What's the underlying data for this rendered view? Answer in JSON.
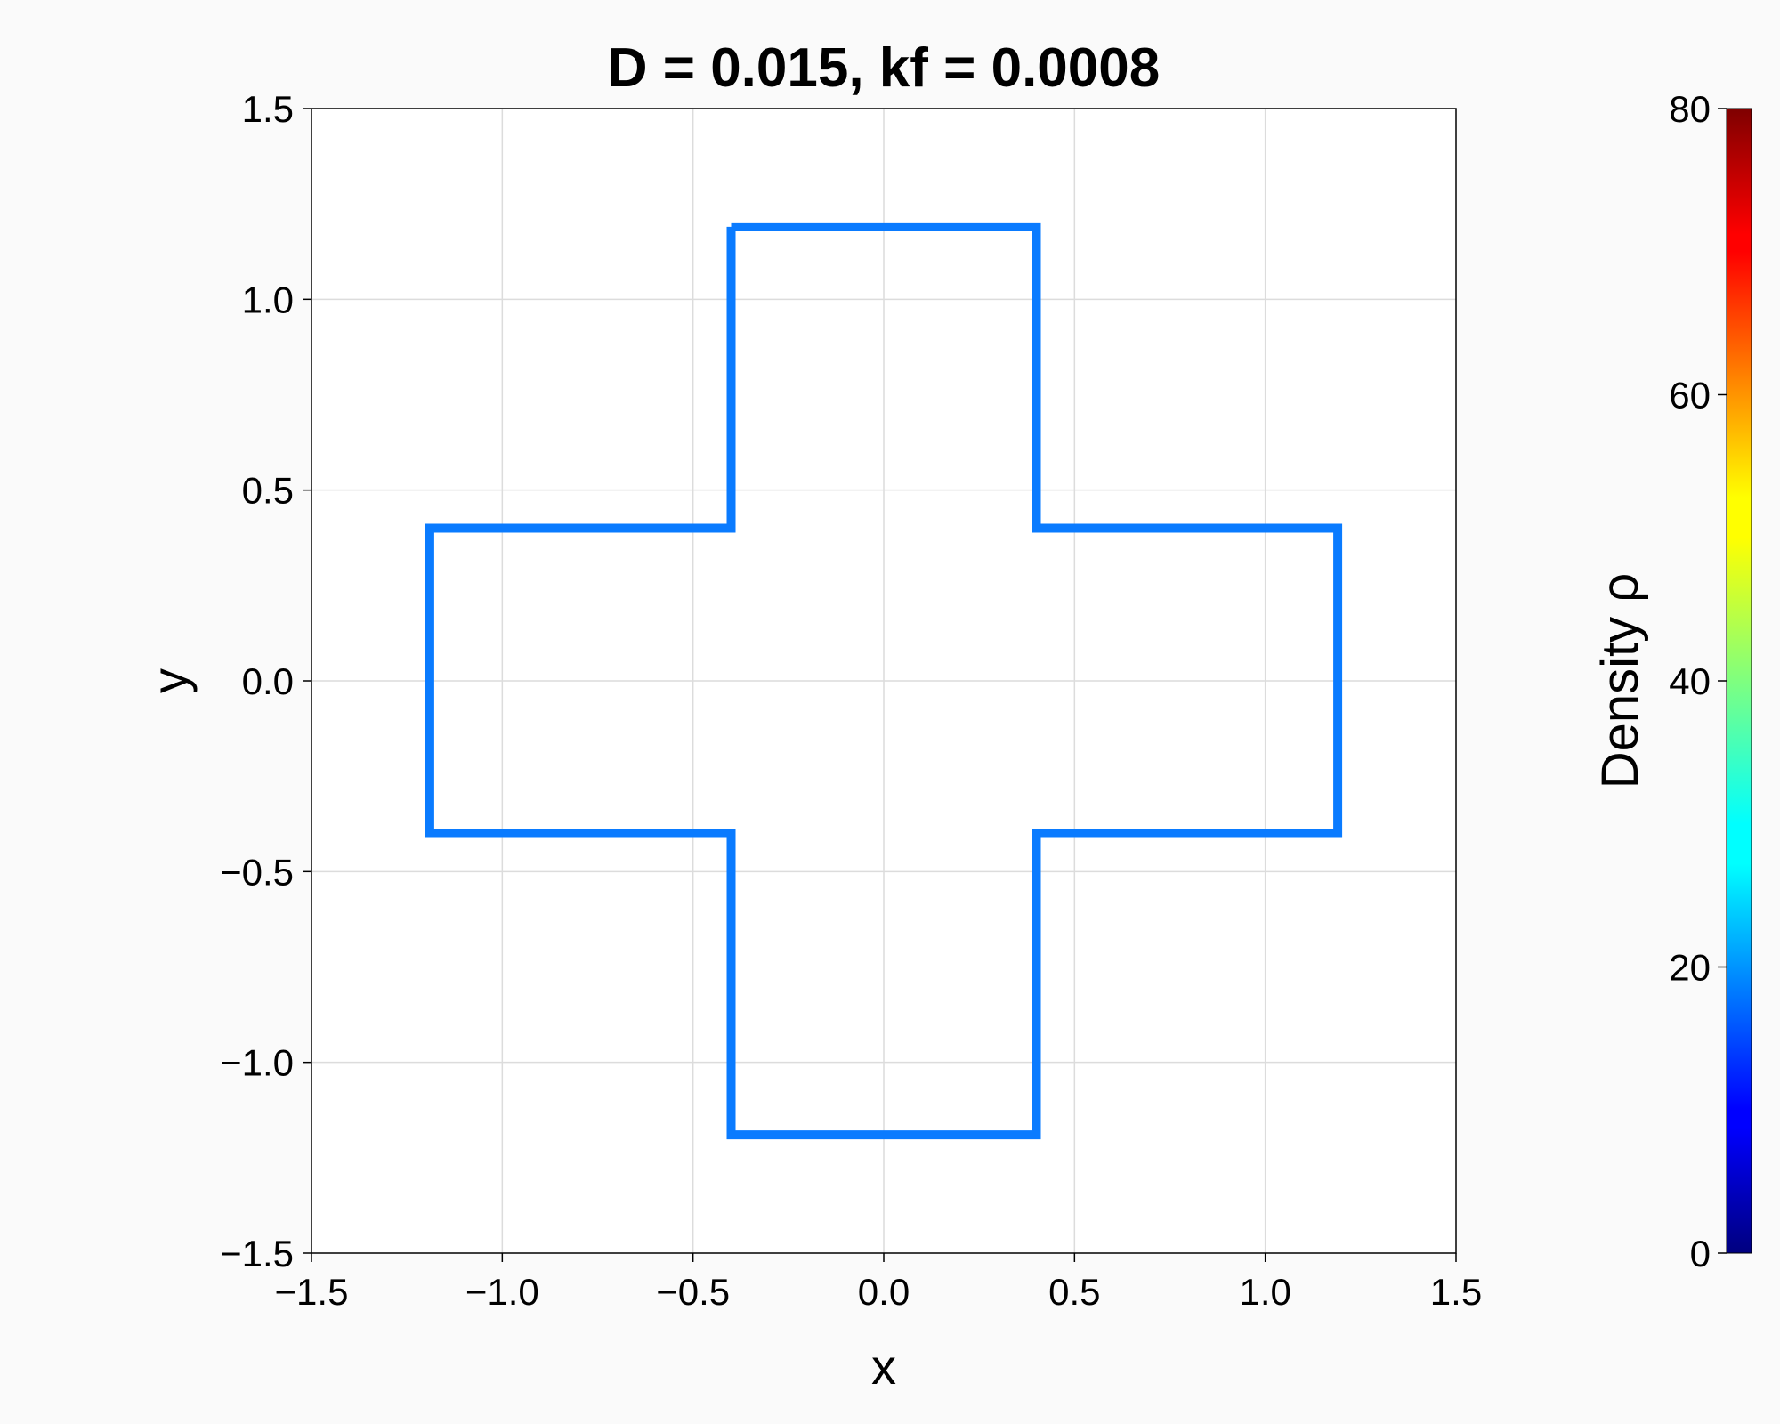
{
  "chart_data": {
    "type": "line",
    "title": "D = 0.015, kf = 0.0008",
    "xlabel": "x",
    "ylabel": "y",
    "xlim": [
      -1.5,
      1.5
    ],
    "ylim": [
      -1.5,
      1.5
    ],
    "xticks": [
      -1.5,
      -1.0,
      -0.5,
      0.0,
      0.5,
      1.0,
      1.5
    ],
    "yticks": [
      -1.5,
      -1.0,
      -0.5,
      0.0,
      0.5,
      1.0,
      1.5
    ],
    "xtick_labels": [
      "−1.5",
      "−1.0",
      "−0.5",
      "0.0",
      "0.5",
      "1.0",
      "1.5"
    ],
    "ytick_labels": [
      "−1.5",
      "−1.0",
      "−0.5",
      "0.0",
      "0.5",
      "1.0",
      "1.5"
    ],
    "grid": true,
    "series": [
      {
        "color": "#0a7bff",
        "density": 20,
        "points": [
          [
            -0.4,
            1.19
          ],
          [
            0.4,
            1.19
          ],
          [
            0.4,
            0.4
          ],
          [
            1.19,
            0.4
          ],
          [
            1.19,
            -0.4
          ],
          [
            0.4,
            -0.4
          ],
          [
            0.4,
            -1.19
          ],
          [
            -0.4,
            -1.19
          ],
          [
            -0.4,
            -0.4
          ],
          [
            -1.19,
            -0.4
          ],
          [
            -1.19,
            0.4
          ],
          [
            -0.4,
            0.4
          ],
          [
            -0.4,
            1.19
          ]
        ]
      }
    ],
    "colorbar": {
      "label": "Density ρ",
      "range": [
        0,
        80
      ],
      "ticks": [
        0,
        20,
        40,
        60,
        80
      ],
      "colormap": "jet"
    }
  }
}
